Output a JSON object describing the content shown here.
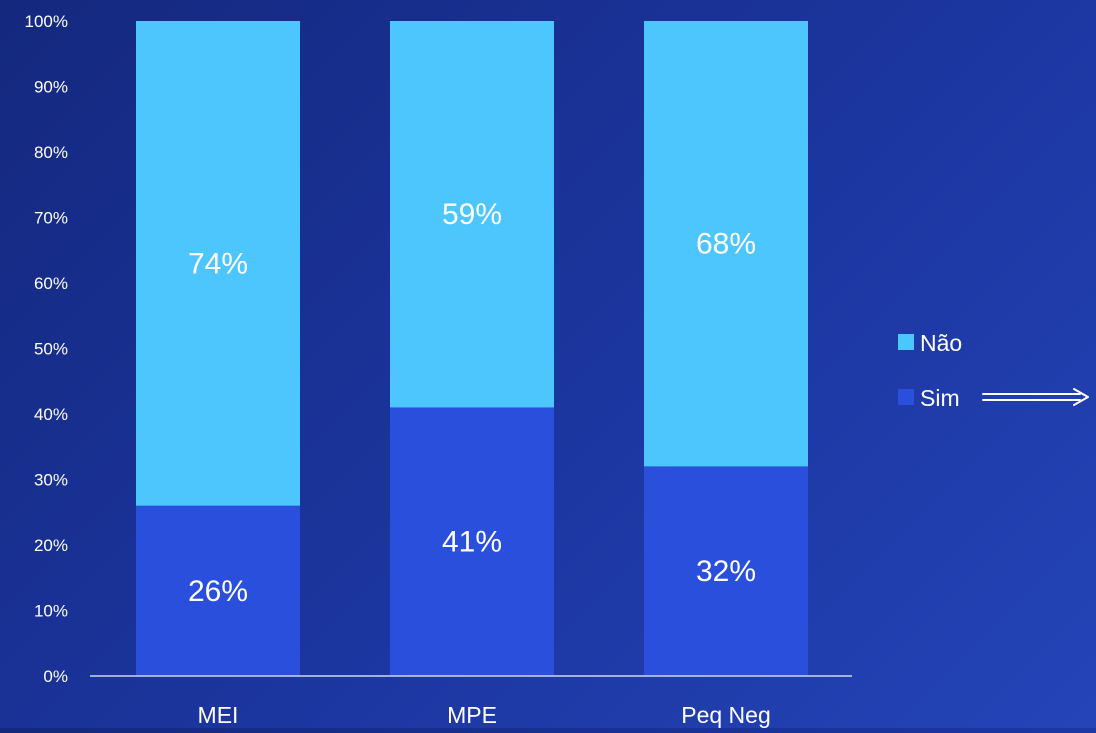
{
  "chart_data": {
    "type": "bar",
    "stacked": true,
    "categories": [
      "MEI",
      "MPE",
      "Peq Neg"
    ],
    "series": [
      {
        "name": "Sim",
        "values": [
          26,
          41,
          32
        ],
        "labels": [
          "26%",
          "41%",
          "32%"
        ],
        "color": "#2a4fdc"
      },
      {
        "name": "Não",
        "values": [
          74,
          59,
          68
        ],
        "labels": [
          "74%",
          "59%",
          "68%"
        ],
        "color": "#4cc6fd"
      }
    ],
    "yticks": [
      "0%",
      "10%",
      "20%",
      "30%",
      "40%",
      "50%",
      "60%",
      "70%",
      "80%",
      "90%",
      "100%"
    ],
    "ylim": [
      0,
      100
    ],
    "legend": {
      "position": "right",
      "order": [
        "Não",
        "Sim"
      ]
    },
    "grid": false,
    "text_color": "#ffffff",
    "axis_color": "#d0d6ee"
  }
}
